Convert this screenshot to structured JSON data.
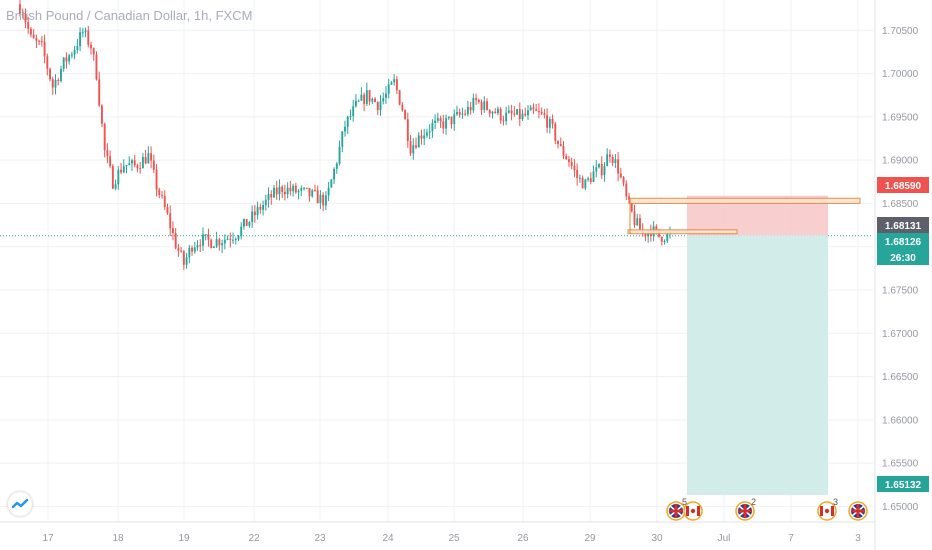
{
  "title": "British Pound / Canadian Dollar, 1h, FXCM",
  "colors": {
    "up": "#26a69a",
    "down": "#ef5350",
    "grid": "#eef0f3",
    "axis_text": "#9598a1",
    "stop_zone": "#f7c5c7",
    "target_zone": "#cdebe7",
    "box_stroke": "#e0873a",
    "box_fill": "#fde2cf",
    "current_line": "#26a69a",
    "tag_red": "#ef5350",
    "tag_gray": "#5d606b",
    "tag_green": "#26a69a"
  },
  "chart_data": {
    "type": "candlestick",
    "symbol": "British Pound / Canadian Dollar",
    "interval": "1h",
    "source": "FXCM",
    "y_axis": {
      "ylim": [
        1.6482,
        1.7085
      ],
      "ticks": [
        "1.70500",
        "1.70000",
        "1.69500",
        "1.69000",
        "1.68500",
        "1.68000",
        "1.67500",
        "1.67000",
        "1.66500",
        "1.66000",
        "1.65500",
        "1.65000"
      ]
    },
    "x_axis": {
      "ticks": [
        "17",
        "18",
        "19",
        "22",
        "23",
        "24",
        "25",
        "26",
        "29",
        "30",
        "Jul",
        "7",
        "3"
      ]
    },
    "trend_anchors": [
      [
        0,
        1.708
      ],
      [
        4,
        1.7073
      ],
      [
        10,
        1.704
      ],
      [
        18,
        1.703
      ],
      [
        26,
        1.6985
      ],
      [
        34,
        1.7012
      ],
      [
        42,
        1.703
      ],
      [
        48,
        1.7048
      ],
      [
        54,
        1.7032
      ],
      [
        58,
        1.7
      ],
      [
        64,
        1.691
      ],
      [
        70,
        1.6875
      ],
      [
        78,
        1.6895
      ],
      [
        86,
        1.6893
      ],
      [
        96,
        1.6905
      ],
      [
        102,
        1.687
      ],
      [
        110,
        1.6835
      ],
      [
        116,
        1.6803
      ],
      [
        122,
        1.678
      ],
      [
        128,
        1.6802
      ],
      [
        134,
        1.6808
      ],
      [
        142,
        1.6806
      ],
      [
        150,
        1.6808
      ],
      [
        160,
        1.6815
      ],
      [
        170,
        1.683
      ],
      [
        178,
        1.6845
      ],
      [
        186,
        1.6858
      ],
      [
        194,
        1.6868
      ],
      [
        200,
        1.6865
      ],
      [
        210,
        1.6862
      ],
      [
        218,
        1.6858
      ],
      [
        226,
        1.6852
      ],
      [
        234,
        1.69
      ],
      [
        240,
        1.694
      ],
      [
        248,
        1.6962
      ],
      [
        256,
        1.6975
      ],
      [
        264,
        1.6965
      ],
      [
        270,
        1.6975
      ],
      [
        276,
        1.699
      ],
      [
        282,
        1.696
      ],
      [
        288,
        1.6915
      ],
      [
        296,
        1.693
      ],
      [
        304,
        1.694
      ],
      [
        312,
        1.6942
      ],
      [
        320,
        1.6948
      ],
      [
        328,
        1.6955
      ],
      [
        336,
        1.6968
      ],
      [
        342,
        1.6962
      ],
      [
        348,
        1.6958
      ],
      [
        356,
        1.695
      ],
      [
        362,
        1.6952
      ],
      [
        370,
        1.695
      ],
      [
        378,
        1.6955
      ],
      [
        386,
        1.695
      ],
      [
        392,
        1.6935
      ],
      [
        398,
        1.6912
      ],
      [
        404,
        1.69
      ],
      [
        410,
        1.688
      ],
      [
        416,
        1.6872
      ],
      [
        422,
        1.6885
      ],
      [
        428,
        1.689
      ],
      [
        434,
        1.691
      ],
      [
        440,
        1.689
      ],
      [
        446,
        1.6855
      ],
      [
        452,
        1.683
      ],
      [
        458,
        1.6815
      ],
      [
        464,
        1.682
      ],
      [
        470,
        1.6812
      ],
      [
        476,
        1.6813
      ]
    ],
    "current_price": 1.68126,
    "trade_setup": {
      "type": "short",
      "stop": 1.6859,
      "entry": 1.68131,
      "target": 1.65132
    },
    "price_tags": [
      {
        "value": "1.68590",
        "color": "red"
      },
      {
        "value": "1.68131",
        "color": "gray"
      },
      {
        "value": "1.68126",
        "color": "green"
      },
      {
        "value": "26:30",
        "color": "green"
      },
      {
        "value": "1.65132",
        "color": "green"
      }
    ],
    "events": [
      {
        "flag": "uk",
        "count": "5"
      },
      {
        "flag": "ca",
        "count": ""
      },
      {
        "flag": "uk",
        "count": "2"
      },
      {
        "flag": "ca",
        "count": "3"
      },
      {
        "flag": "uk",
        "count": ""
      }
    ]
  }
}
